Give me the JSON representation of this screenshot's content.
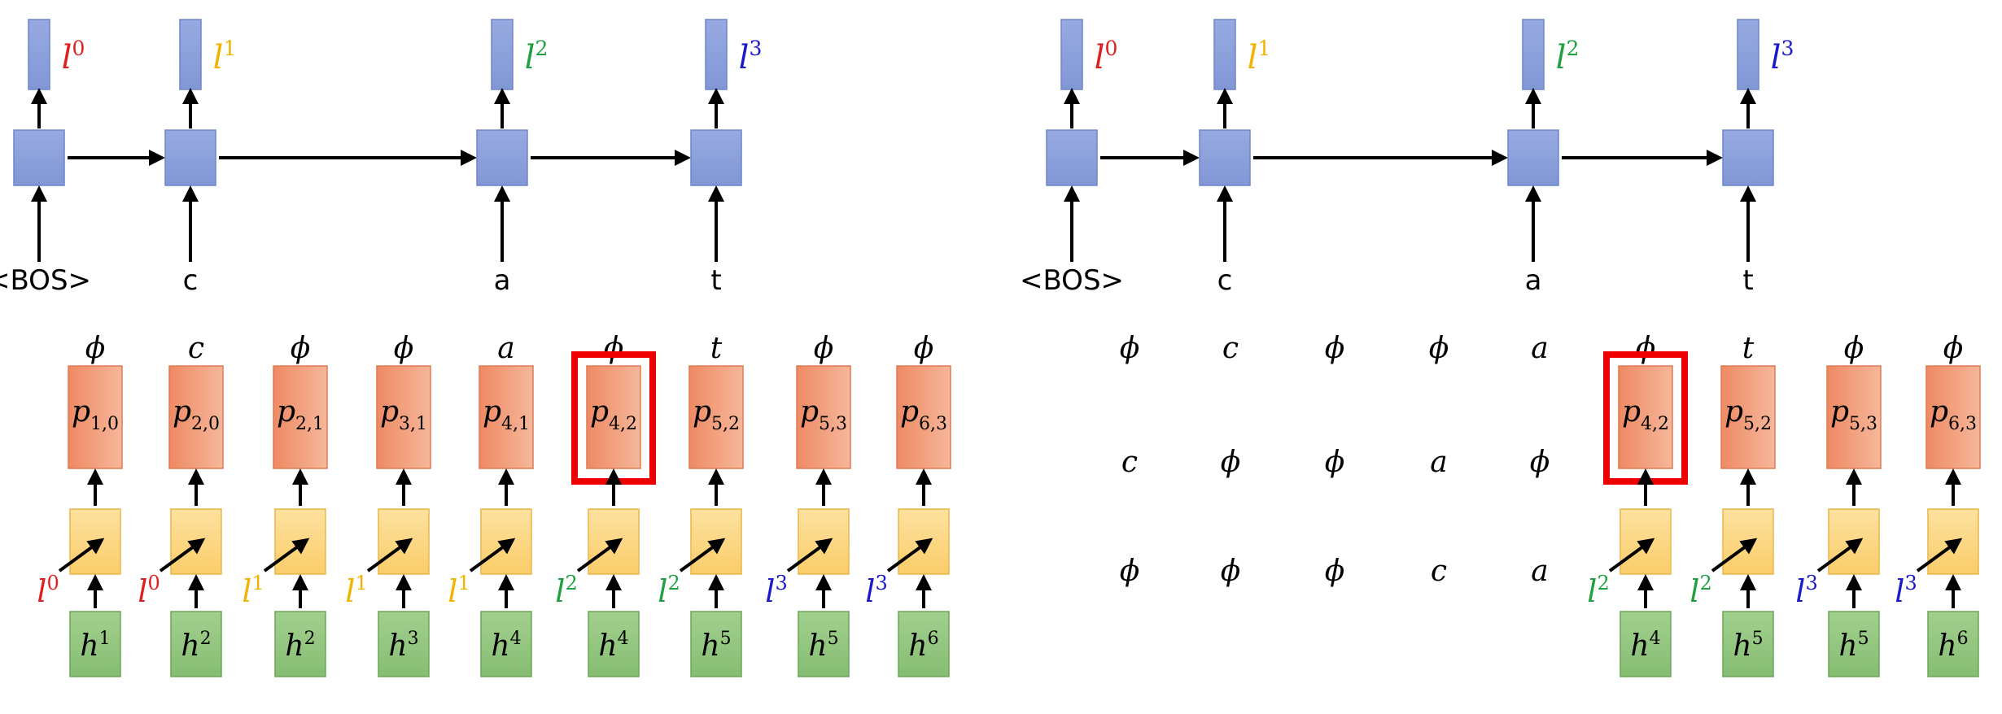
{
  "colors": {
    "label_red": "#e02020",
    "label_orange": "#f0b400",
    "label_green": "#20a040",
    "label_blue": "#1a1acc",
    "highlight": "#ee0000",
    "lstm_blue": "#8ea3dc",
    "joint_yellow": "#fcd88a",
    "prob_orange": "#f09a78",
    "enc_green": "#8fc47f",
    "arrow": "#000000"
  },
  "left_panel": {
    "lstm_outputs": [
      {
        "base": "l",
        "sup": "0",
        "color": "label_red"
      },
      {
        "base": "l",
        "sup": "1",
        "color": "label_orange"
      },
      {
        "base": "l",
        "sup": "2",
        "color": "label_green"
      },
      {
        "base": "l",
        "sup": "3",
        "color": "label_blue"
      }
    ],
    "lstm_inputs": [
      "<BOS>",
      "c",
      "a",
      "t"
    ],
    "path_symbols": [
      "ϕ",
      "c",
      "ϕ",
      "ϕ",
      "a",
      "ϕ",
      "t",
      "ϕ",
      "ϕ"
    ],
    "path_columns": [
      {
        "p_base": "p",
        "p_sub": "1,0",
        "l_sup": "0",
        "l_color": "label_red",
        "h_sup": "1"
      },
      {
        "p_base": "p",
        "p_sub": "2,0",
        "l_sup": "0",
        "l_color": "label_red",
        "h_sup": "2"
      },
      {
        "p_base": "p",
        "p_sub": "2,1",
        "l_sup": "1",
        "l_color": "label_orange",
        "h_sup": "2"
      },
      {
        "p_base": "p",
        "p_sub": "3,1",
        "l_sup": "1",
        "l_color": "label_orange",
        "h_sup": "3"
      },
      {
        "p_base": "p",
        "p_sub": "4,1",
        "l_sup": "1",
        "l_color": "label_orange",
        "h_sup": "4"
      },
      {
        "p_base": "p",
        "p_sub": "4,2",
        "l_sup": "2",
        "l_color": "label_green",
        "h_sup": "4",
        "highlight": true
      },
      {
        "p_base": "p",
        "p_sub": "5,2",
        "l_sup": "2",
        "l_color": "label_green",
        "h_sup": "5"
      },
      {
        "p_base": "p",
        "p_sub": "5,3",
        "l_sup": "3",
        "l_color": "label_blue",
        "h_sup": "5"
      },
      {
        "p_base": "p",
        "p_sub": "6,3",
        "l_sup": "3",
        "l_color": "label_blue",
        "h_sup": "6"
      }
    ],
    "label_letter": "l",
    "enc_letter": "h"
  },
  "right_panel": {
    "lstm_outputs": [
      {
        "base": "l",
        "sup": "0",
        "color": "label_red"
      },
      {
        "base": "l",
        "sup": "1",
        "color": "label_orange"
      },
      {
        "base": "l",
        "sup": "2",
        "color": "label_green"
      },
      {
        "base": "l",
        "sup": "3",
        "color": "label_blue"
      }
    ],
    "lstm_inputs": [
      "<BOS>",
      "c",
      "a",
      "t"
    ],
    "prefix_rows": [
      [
        "ϕ",
        "c",
        "ϕ",
        "ϕ",
        "a"
      ],
      [
        "c",
        "ϕ",
        "ϕ",
        "a",
        "ϕ"
      ],
      [
        "ϕ",
        "ϕ",
        "ϕ",
        "c",
        "a"
      ]
    ],
    "path_symbols": [
      "ϕ",
      "t",
      "ϕ",
      "ϕ"
    ],
    "path_columns": [
      {
        "p_base": "p",
        "p_sub": "4,2",
        "l_sup": "2",
        "l_color": "label_green",
        "h_sup": "4",
        "highlight": true
      },
      {
        "p_base": "p",
        "p_sub": "5,2",
        "l_sup": "2",
        "l_color": "label_green",
        "h_sup": "5"
      },
      {
        "p_base": "p",
        "p_sub": "5,3",
        "l_sup": "3",
        "l_color": "label_blue",
        "h_sup": "5"
      },
      {
        "p_base": "p",
        "p_sub": "6,3",
        "l_sup": "3",
        "l_color": "label_blue",
        "h_sup": "6"
      }
    ],
    "label_letter": "l",
    "enc_letter": "h"
  }
}
